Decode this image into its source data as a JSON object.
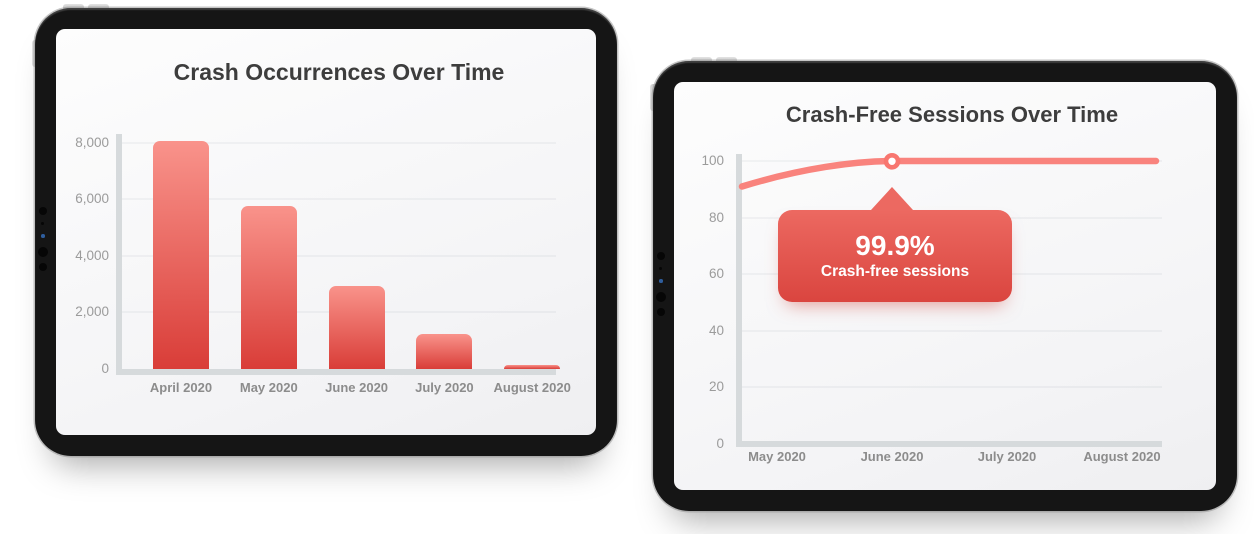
{
  "chart_data": [
    {
      "type": "bar",
      "title": "Crash Occurrences Over Time",
      "categories": [
        "April 2020",
        "May 2020",
        "June 2020",
        "July 2020",
        "August 2020"
      ],
      "values": [
        8050,
        5750,
        2950,
        1250,
        130
      ],
      "xlabel": "",
      "ylabel": "",
      "ylim": [
        0,
        8300
      ],
      "yticks": [
        0,
        2000,
        4000,
        6000,
        8000
      ],
      "ytick_labels": [
        "0",
        "2,000",
        "4,000",
        "6,000",
        "8,000"
      ],
      "grid": true,
      "legend": false,
      "colors": {
        "bar_top": "#f9938b",
        "bar_bottom": "#d93d38",
        "axis": "#d6dadc",
        "tick_text": "#9b9b9b",
        "category_text": "#8c8c8c",
        "title_text": "#3d3d3d"
      }
    },
    {
      "type": "line",
      "title": "Crash-Free Sessions Over Time",
      "categories": [
        "May 2020",
        "June 2020",
        "July 2020",
        "August 2020"
      ],
      "x": [
        "(plot-start)",
        "May 2020",
        "June 2020",
        "July 2020",
        "August 2020",
        "(plot-end)"
      ],
      "values": [
        91,
        97.5,
        99.9,
        100,
        100,
        100
      ],
      "xlabel": "",
      "ylabel": "",
      "ylim": [
        0,
        104
      ],
      "yticks": [
        0,
        20,
        40,
        60,
        80,
        100
      ],
      "ytick_labels": [
        "0",
        "20",
        "40",
        "60",
        "80",
        "100"
      ],
      "grid": true,
      "legend": false,
      "marker": {
        "category": "June 2020",
        "value": 99.9
      },
      "tooltip": {
        "value": "99.9%",
        "label": "Crash-free sessions"
      },
      "colors": {
        "line": "#f9837d",
        "marker_ring": "#f8766f",
        "marker_fill": "#ffffff",
        "tooltip_top": "#ec6961",
        "tooltip_bottom": "#da453f",
        "axis": "#d6dadc",
        "tick_text": "#9b9b9b",
        "category_text": "#8c8c8c",
        "title_text": "#3d3d3d"
      }
    }
  ],
  "icons": {
    "front-camera": "dark circular sensor dots on bezel",
    "tooltip-arrow": "upward triangle pointer",
    "line-marker": "white circle with red ring"
  }
}
